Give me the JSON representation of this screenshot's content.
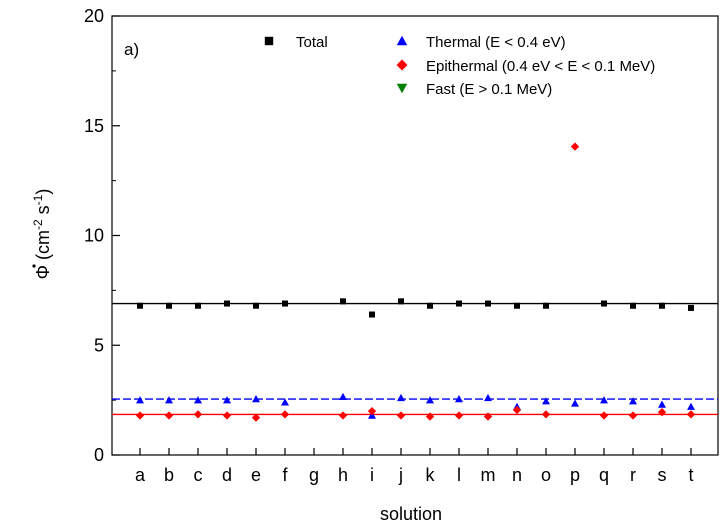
{
  "chart_data": {
    "type": "scatter",
    "panel_label": "a)",
    "xlabel": "solution",
    "ylabel": {
      "symbol": "Φ",
      "open": " (cm",
      "exp1": "-2",
      "mid": " s",
      "exp2": "-1",
      "close": ")"
    },
    "categories": [
      "a",
      "b",
      "c",
      "d",
      "e",
      "f",
      "g",
      "h",
      "i",
      "j",
      "k",
      "l",
      "m",
      "n",
      "o",
      "p",
      "q",
      "r",
      "s",
      "t"
    ],
    "ylim": [
      0,
      20
    ],
    "yticks": [
      0,
      5,
      10,
      15,
      20
    ],
    "grid": false,
    "legend_position": "top",
    "series": [
      {
        "name": "Total",
        "marker": "square",
        "color": "#000000",
        "values": [
          6.8,
          6.8,
          6.8,
          6.9,
          6.8,
          6.9,
          null,
          7.0,
          6.4,
          7.0,
          6.8,
          6.9,
          6.9,
          6.8,
          6.8,
          null,
          6.9,
          6.8,
          6.8,
          6.7
        ],
        "reference_line": 6.9
      },
      {
        "name": "Thermal (E < 0.4 eV)",
        "marker": "triangle-up",
        "color": "#0000ff",
        "values": [
          2.5,
          2.5,
          2.5,
          2.5,
          2.55,
          2.4,
          null,
          2.65,
          1.8,
          2.6,
          2.5,
          2.55,
          2.6,
          2.2,
          2.45,
          2.35,
          2.5,
          2.45,
          2.3,
          2.2
        ],
        "reference_line": 2.55
      },
      {
        "name": "Epithermal (0.4 eV < E < 0.1 MeV)",
        "marker": "diamond",
        "color": "#ff0000",
        "values": [
          1.8,
          1.8,
          1.85,
          1.8,
          1.7,
          1.85,
          null,
          1.8,
          2.0,
          1.8,
          1.75,
          1.8,
          1.75,
          2.05,
          1.85,
          14.05,
          1.8,
          1.8,
          1.95,
          1.85
        ],
        "reference_line": 1.85
      },
      {
        "name": "Fast (E > 0.1 MeV)",
        "marker": "triangle-down",
        "color": "#008000",
        "values": [],
        "reference_line": null
      }
    ]
  }
}
